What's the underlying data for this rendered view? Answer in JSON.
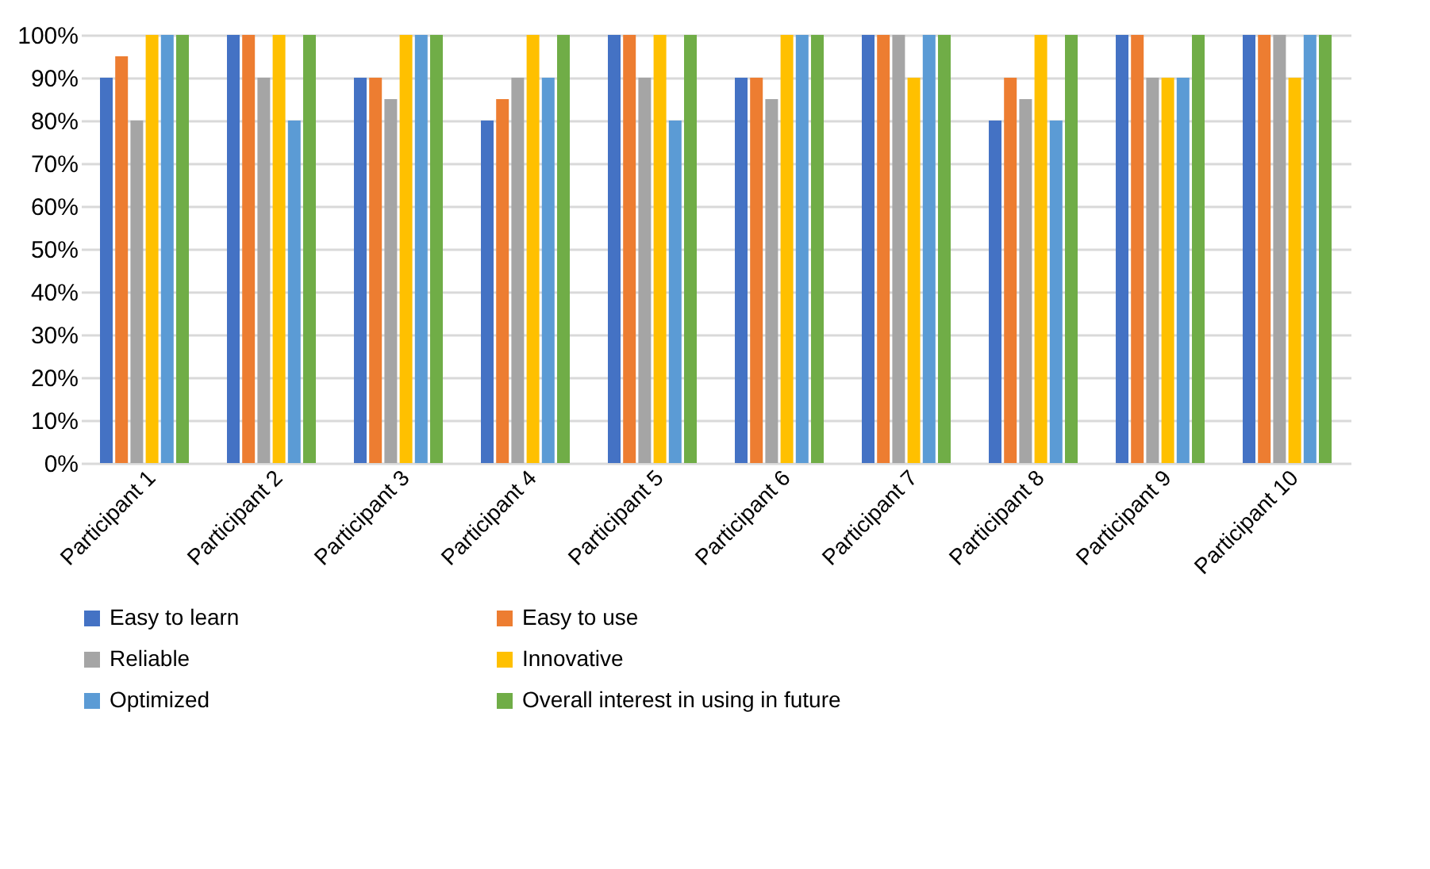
{
  "chart_data": {
    "type": "bar",
    "categories": [
      "Participant 1",
      "Participant 2",
      "Participant 3",
      "Participant 4",
      "Participant 5",
      "Participant 6",
      "Participant 7",
      "Participant 8",
      "Participant 9",
      "Participant 10"
    ],
    "series": [
      {
        "name": "Easy to learn",
        "color": "#4472c4",
        "values": [
          90,
          100,
          90,
          80,
          100,
          90,
          100,
          80,
          100,
          100
        ]
      },
      {
        "name": "Easy to use",
        "color": "#ed7d31",
        "values": [
          95,
          100,
          90,
          85,
          100,
          90,
          100,
          90,
          100,
          100
        ]
      },
      {
        "name": "Reliable",
        "color": "#a5a5a5",
        "values": [
          80,
          90,
          85,
          90,
          90,
          85,
          100,
          85,
          90,
          100
        ]
      },
      {
        "name": "Innovative",
        "color": "#ffc000",
        "values": [
          100,
          100,
          100,
          100,
          100,
          100,
          90,
          100,
          90,
          90
        ]
      },
      {
        "name": "Optimized",
        "color": "#5b9bd5",
        "values": [
          100,
          80,
          100,
          90,
          80,
          100,
          100,
          80,
          90,
          100
        ]
      },
      {
        "name": "Overall interest in using in future",
        "color": "#70ad47",
        "values": [
          100,
          100,
          100,
          100,
          100,
          100,
          100,
          100,
          100,
          100
        ]
      }
    ],
    "ylim": [
      0,
      100
    ],
    "yticks": [
      {
        "value": 0,
        "label": "0%"
      },
      {
        "value": 10,
        "label": "10%"
      },
      {
        "value": 20,
        "label": "20%"
      },
      {
        "value": 30,
        "label": "30%"
      },
      {
        "value": 40,
        "label": "40%"
      },
      {
        "value": 50,
        "label": "50%"
      },
      {
        "value": 60,
        "label": "60%"
      },
      {
        "value": 70,
        "label": "70%"
      },
      {
        "value": 80,
        "label": "80%"
      },
      {
        "value": 90,
        "label": "90%"
      },
      {
        "value": 100,
        "label": "100%"
      }
    ],
    "grid": "y",
    "legend": "bottom"
  }
}
